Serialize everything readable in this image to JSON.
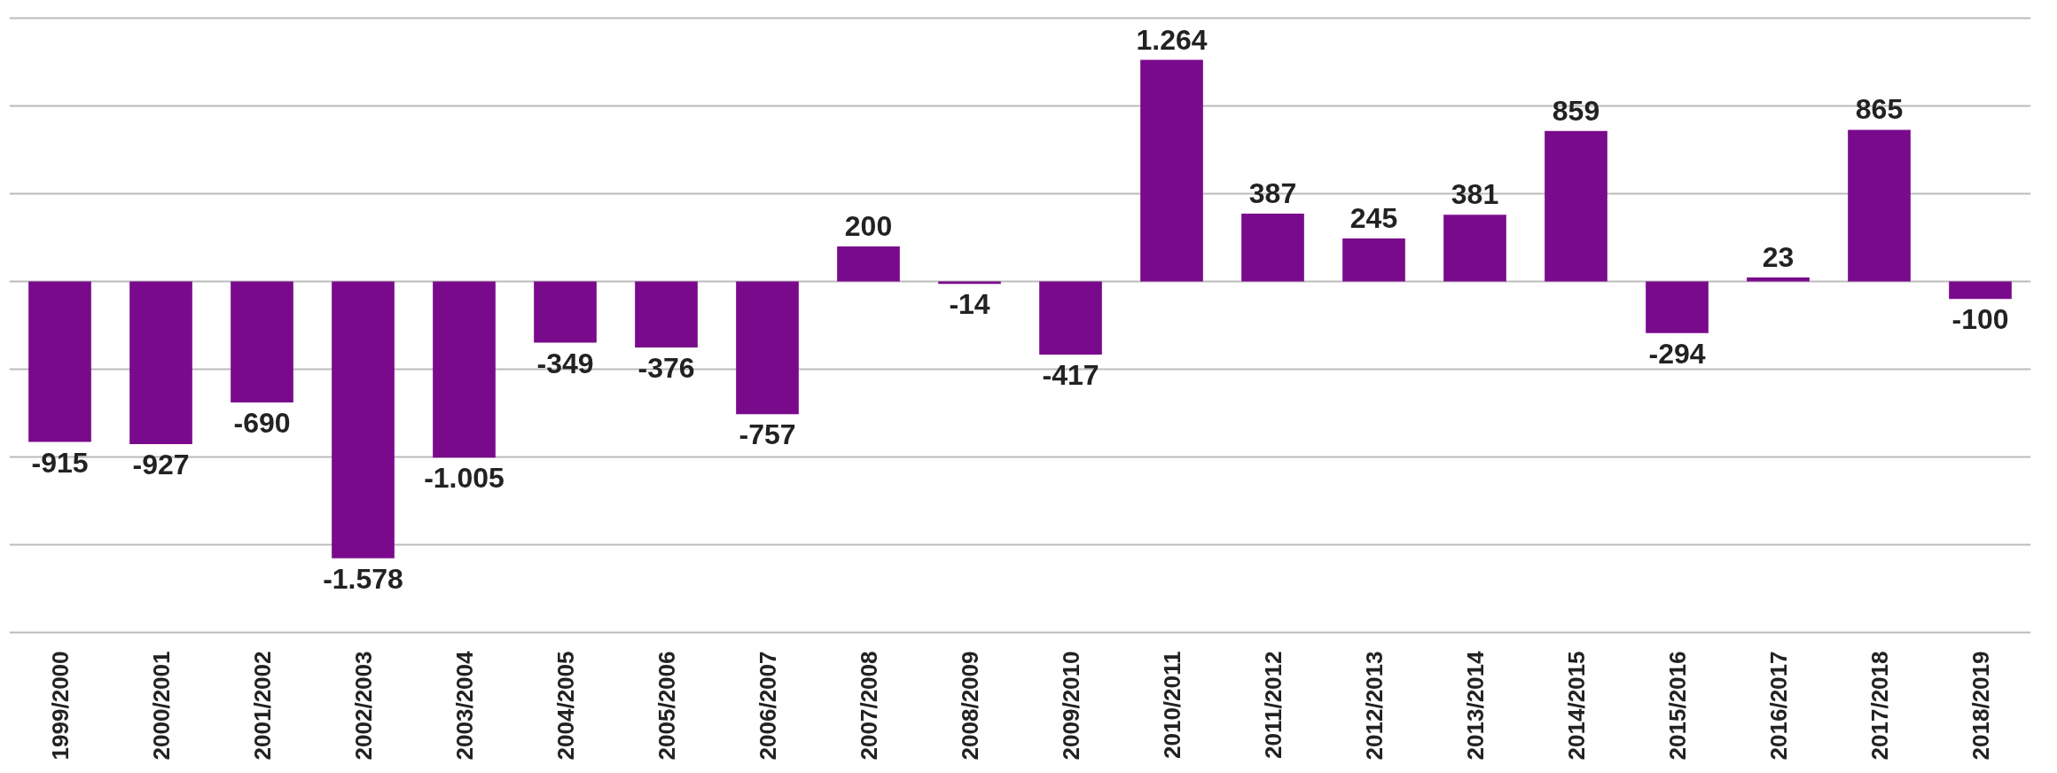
{
  "chart_data": {
    "type": "bar",
    "categories": [
      "1999/2000",
      "2000/2001",
      "2001/2002",
      "2002/2003",
      "2003/2004",
      "2004/2005",
      "2005/2006",
      "2006/2007",
      "2007/2008",
      "2008/2009",
      "2009/2010",
      "2010/2011",
      "2011/2012",
      "2012/2013",
      "2013/2014",
      "2014/2015",
      "2015/2016",
      "2016/2017",
      "2017/2018",
      "2018/2019"
    ],
    "values": [
      -915,
      -927,
      -690,
      -1578,
      -1005,
      -349,
      -376,
      -757,
      200,
      -14,
      -417,
      1264,
      387,
      245,
      381,
      859,
      -294,
      23,
      865,
      -100
    ],
    "value_labels": [
      "-915",
      "-927",
      "-690",
      "-1.578",
      "-1.005",
      "-349",
      "-376",
      "-757",
      "200",
      "-14",
      "-417",
      "1.264",
      "387",
      "245",
      "381",
      "859",
      "-294",
      "23",
      "865",
      "-100"
    ],
    "color": "#7a0a8c",
    "yticks": [
      {
        "value": -2000,
        "label": null
      },
      {
        "value": -1500,
        "label": null
      },
      {
        "value": -1000,
        "label": null
      },
      {
        "value": -500,
        "label": null
      },
      {
        "value": 0,
        "label": null
      },
      {
        "value": 500,
        "label": null
      },
      {
        "value": 1000,
        "label": null
      },
      {
        "value": 1500,
        "label": null
      }
    ],
    "grid": "y",
    "tick_labels": "x"
  }
}
